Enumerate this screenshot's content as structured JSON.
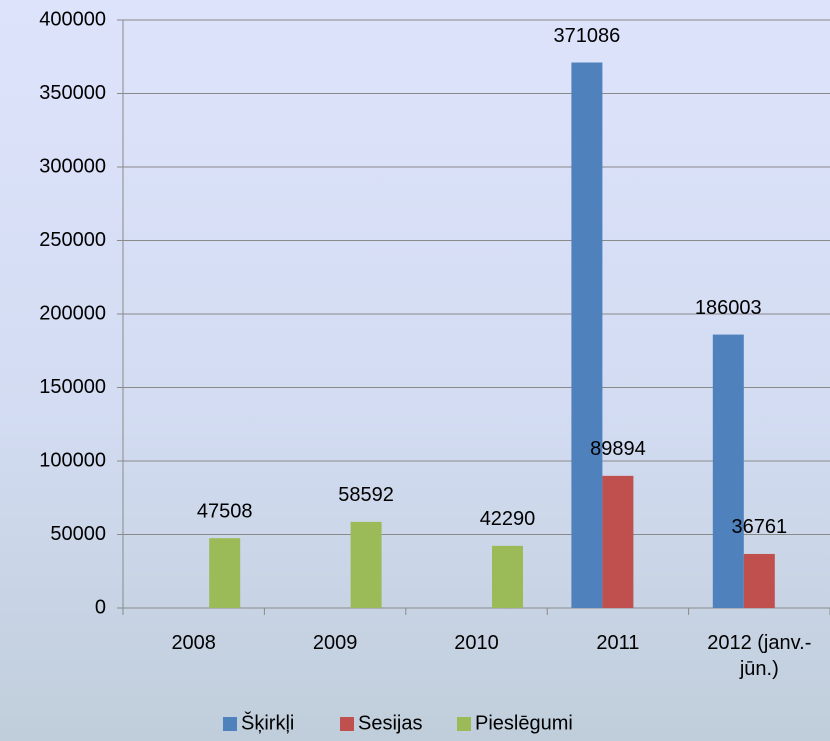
{
  "chart_data": {
    "type": "bar",
    "categories": [
      "2008",
      "2009",
      "2010",
      "2011",
      "2012 (janv.-jūn.)"
    ],
    "series": [
      {
        "name": "Šķirkļi",
        "color": "#4f81bd",
        "values": [
          null,
          null,
          null,
          371086,
          186003
        ]
      },
      {
        "name": "Sesijas",
        "color": "#c0504d",
        "values": [
          null,
          null,
          null,
          89894,
          36761
        ]
      },
      {
        "name": "Pieslēgumi",
        "color": "#9bbb59",
        "values": [
          47508,
          58592,
          42290,
          null,
          null
        ]
      }
    ],
    "ylim": [
      0,
      400000
    ],
    "yticks": [
      0,
      50000,
      100000,
      150000,
      200000,
      250000,
      300000,
      350000,
      400000
    ],
    "grid": true,
    "legend": "bottom"
  }
}
